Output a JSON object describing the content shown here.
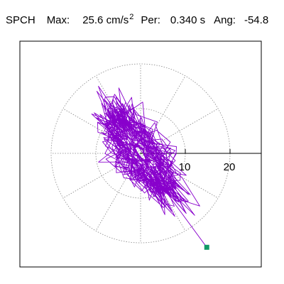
{
  "header": {
    "station": "SPCH",
    "max_label": "Max:",
    "max_value": "25.6",
    "max_unit": "cm/s",
    "max_unit_exp": "2",
    "per_label": "Per:",
    "per_value": "0.340",
    "per_unit": "s",
    "ang_label": "Ang:",
    "ang_value": "-54.8"
  },
  "colors": {
    "trace": "#8800cc",
    "marker": "#119966",
    "grid": "#888888",
    "axis": "#000000",
    "frame": "#000000"
  },
  "chart_data": {
    "type": "scatter",
    "description_of_axes": "polar",
    "ring_values": [
      10,
      20
    ],
    "ring_labels": [
      "10",
      "20"
    ],
    "max_extent": 20,
    "spoke_angles_deg": [
      0,
      30,
      60,
      90,
      120,
      150,
      180,
      210,
      240,
      270,
      300,
      330
    ],
    "grid": true,
    "peak_angle_deg": -54.8,
    "peak_amplitude": 25.6,
    "end_point": [
      14.8,
      -21.0
    ]
  }
}
